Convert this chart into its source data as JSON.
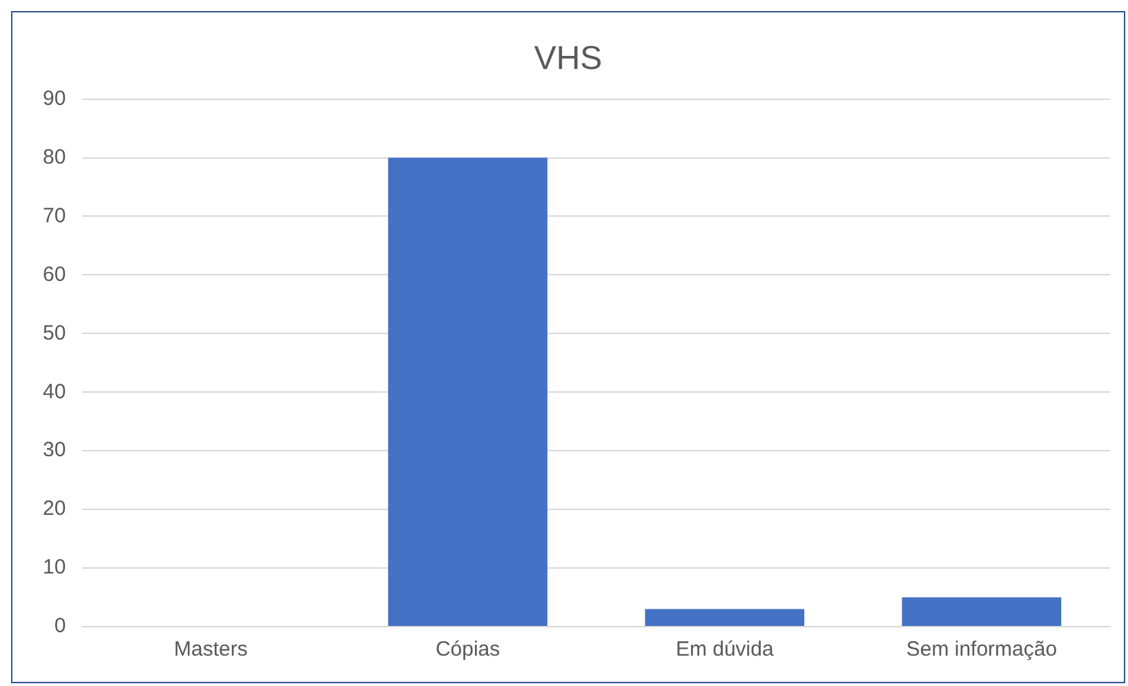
{
  "chart_data": {
    "type": "bar",
    "title": "VHS",
    "categories": [
      "Masters",
      "Cópias",
      "Em dúvida",
      "Sem informação"
    ],
    "values": [
      0,
      80,
      3,
      5
    ],
    "color": "#4472c4",
    "ylim": [
      0,
      90
    ],
    "yticks": [
      0,
      10,
      20,
      30,
      40,
      50,
      60,
      70,
      80,
      90
    ],
    "grid": "y",
    "legend": false
  }
}
